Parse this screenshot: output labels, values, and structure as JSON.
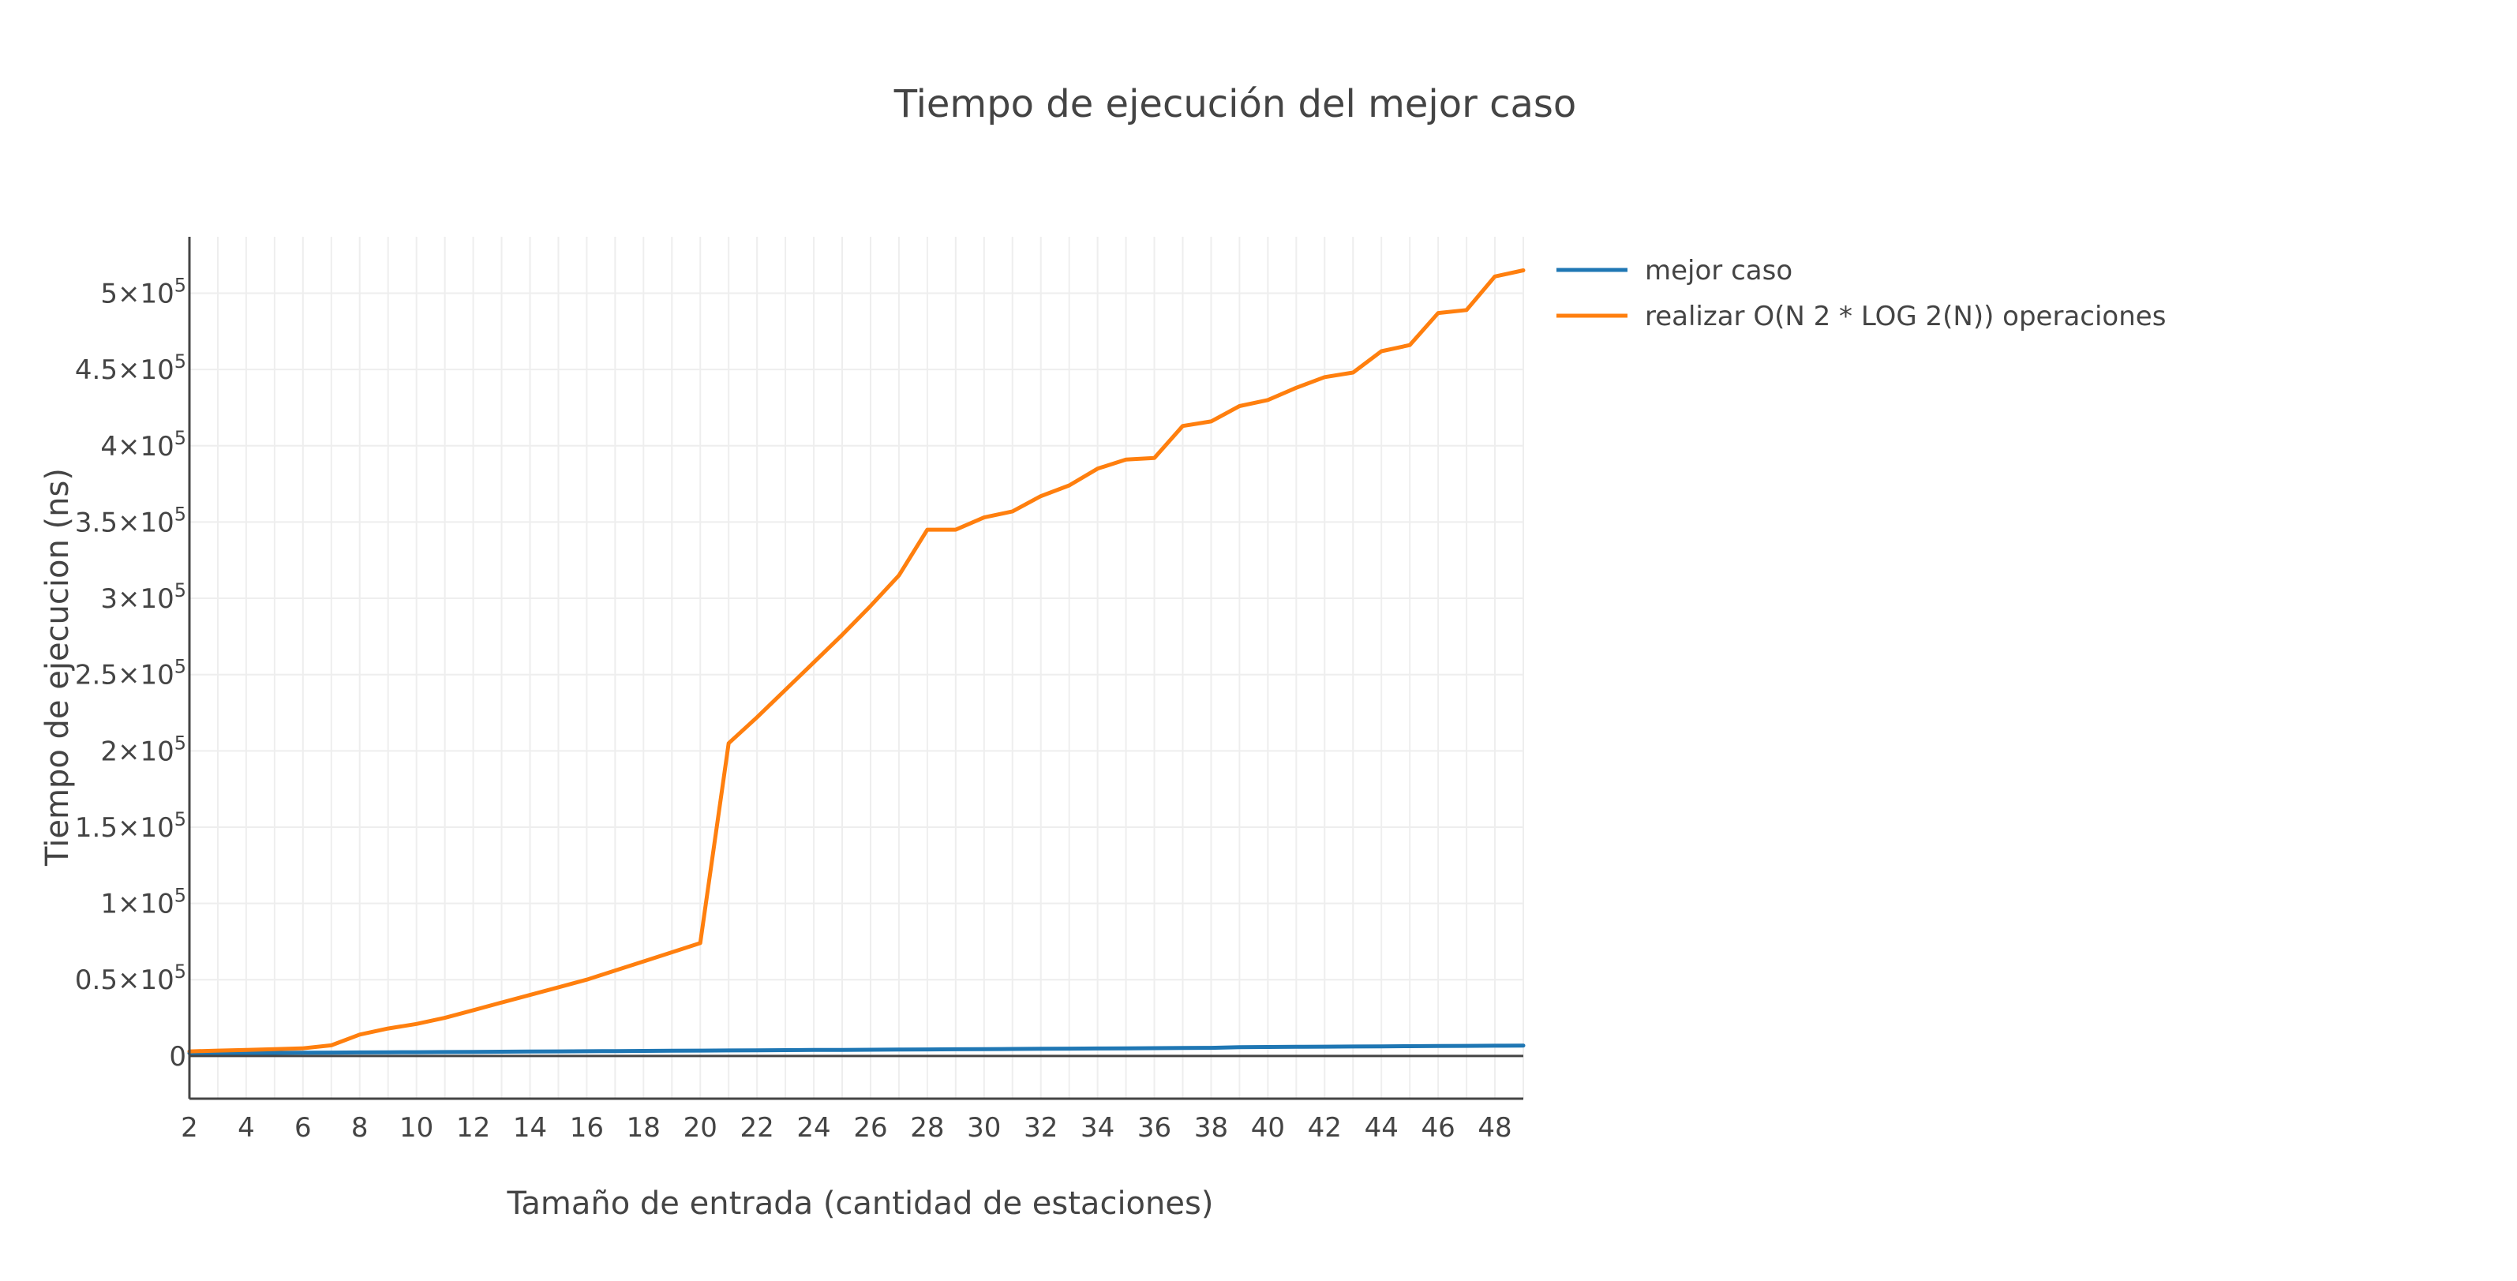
{
  "chart_data": {
    "type": "line",
    "title": "Tiempo de ejecución del mejor caso",
    "xlabel": "Tamaño de entrada (cantidad de estaciones)",
    "ylabel": "Tiempo de ejecucion (ns)",
    "xlim": [
      2,
      49
    ],
    "ylim": [
      -28000,
      537000
    ],
    "grid": true,
    "legend_position": "top-right, outside plot",
    "x_ticks": [
      2,
      4,
      6,
      8,
      10,
      12,
      14,
      16,
      18,
      20,
      22,
      24,
      26,
      28,
      30,
      32,
      34,
      36,
      38,
      40,
      42,
      44,
      46,
      48
    ],
    "x_tick_labels": [
      "2",
      "4",
      "6",
      "8",
      "10",
      "12",
      "14",
      "16",
      "18",
      "20",
      "22",
      "24",
      "26",
      "28",
      "30",
      "32",
      "34",
      "36",
      "38",
      "40",
      "42",
      "44",
      "46",
      "48"
    ],
    "y_ticks": [
      0,
      50000,
      100000,
      150000,
      200000,
      250000,
      300000,
      350000,
      400000,
      450000,
      500000
    ],
    "y_tick_labels": [
      {
        "base": "0",
        "exp": ""
      },
      {
        "base": "0.5×10",
        "exp": "5"
      },
      {
        "base": "1×10",
        "exp": "5"
      },
      {
        "base": "1.5×10",
        "exp": "5"
      },
      {
        "base": "2×10",
        "exp": "5"
      },
      {
        "base": "2.5×10",
        "exp": "5"
      },
      {
        "base": "3×10",
        "exp": "5"
      },
      {
        "base": "3.5×10",
        "exp": "5"
      },
      {
        "base": "4×10",
        "exp": "5"
      },
      {
        "base": "4.5×10",
        "exp": "5"
      },
      {
        "base": "5×10",
        "exp": "5"
      }
    ],
    "x": [
      2,
      3,
      4,
      5,
      6,
      7,
      8,
      9,
      10,
      11,
      12,
      13,
      14,
      15,
      16,
      17,
      18,
      19,
      20,
      21,
      22,
      23,
      24,
      25,
      26,
      27,
      28,
      29,
      30,
      31,
      32,
      33,
      34,
      35,
      36,
      37,
      38,
      39,
      40,
      41,
      42,
      43,
      44,
      45,
      46,
      47,
      48,
      49
    ],
    "series": [
      {
        "name": "mejor caso",
        "color": "#1f77b4",
        "values": [
          1800,
          1900,
          2000,
          2000,
          2100,
          2200,
          2300,
          2400,
          2500,
          2600,
          2700,
          2800,
          2900,
          3000,
          3100,
          3200,
          3300,
          3400,
          3500,
          3600,
          3700,
          3800,
          3900,
          4000,
          4100,
          4200,
          4300,
          4400,
          4500,
          4600,
          4700,
          4800,
          4900,
          5000,
          5100,
          5200,
          5300,
          5800,
          5900,
          6000,
          6100,
          6200,
          6300,
          6400,
          6500,
          6600,
          6700,
          6800
        ]
      },
      {
        "name": "realizar O(N 2 * LOG  2(N)) operaciones",
        "color": "#ff7f0e",
        "values": [
          3000,
          3500,
          4000,
          4500,
          5000,
          7000,
          14000,
          18000,
          21000,
          25000,
          30000,
          35000,
          40000,
          45000,
          50000,
          56000,
          62000,
          68000,
          74000,
          205000,
          222000,
          240000,
          258000,
          276000,
          295000,
          315000,
          345000,
          345000,
          353000,
          357000,
          367000,
          374000,
          385000,
          391000,
          392000,
          413000,
          416000,
          426000,
          430000,
          438000,
          445000,
          448000,
          462000,
          466000,
          487000,
          489000,
          511000,
          515000
        ]
      }
    ]
  }
}
